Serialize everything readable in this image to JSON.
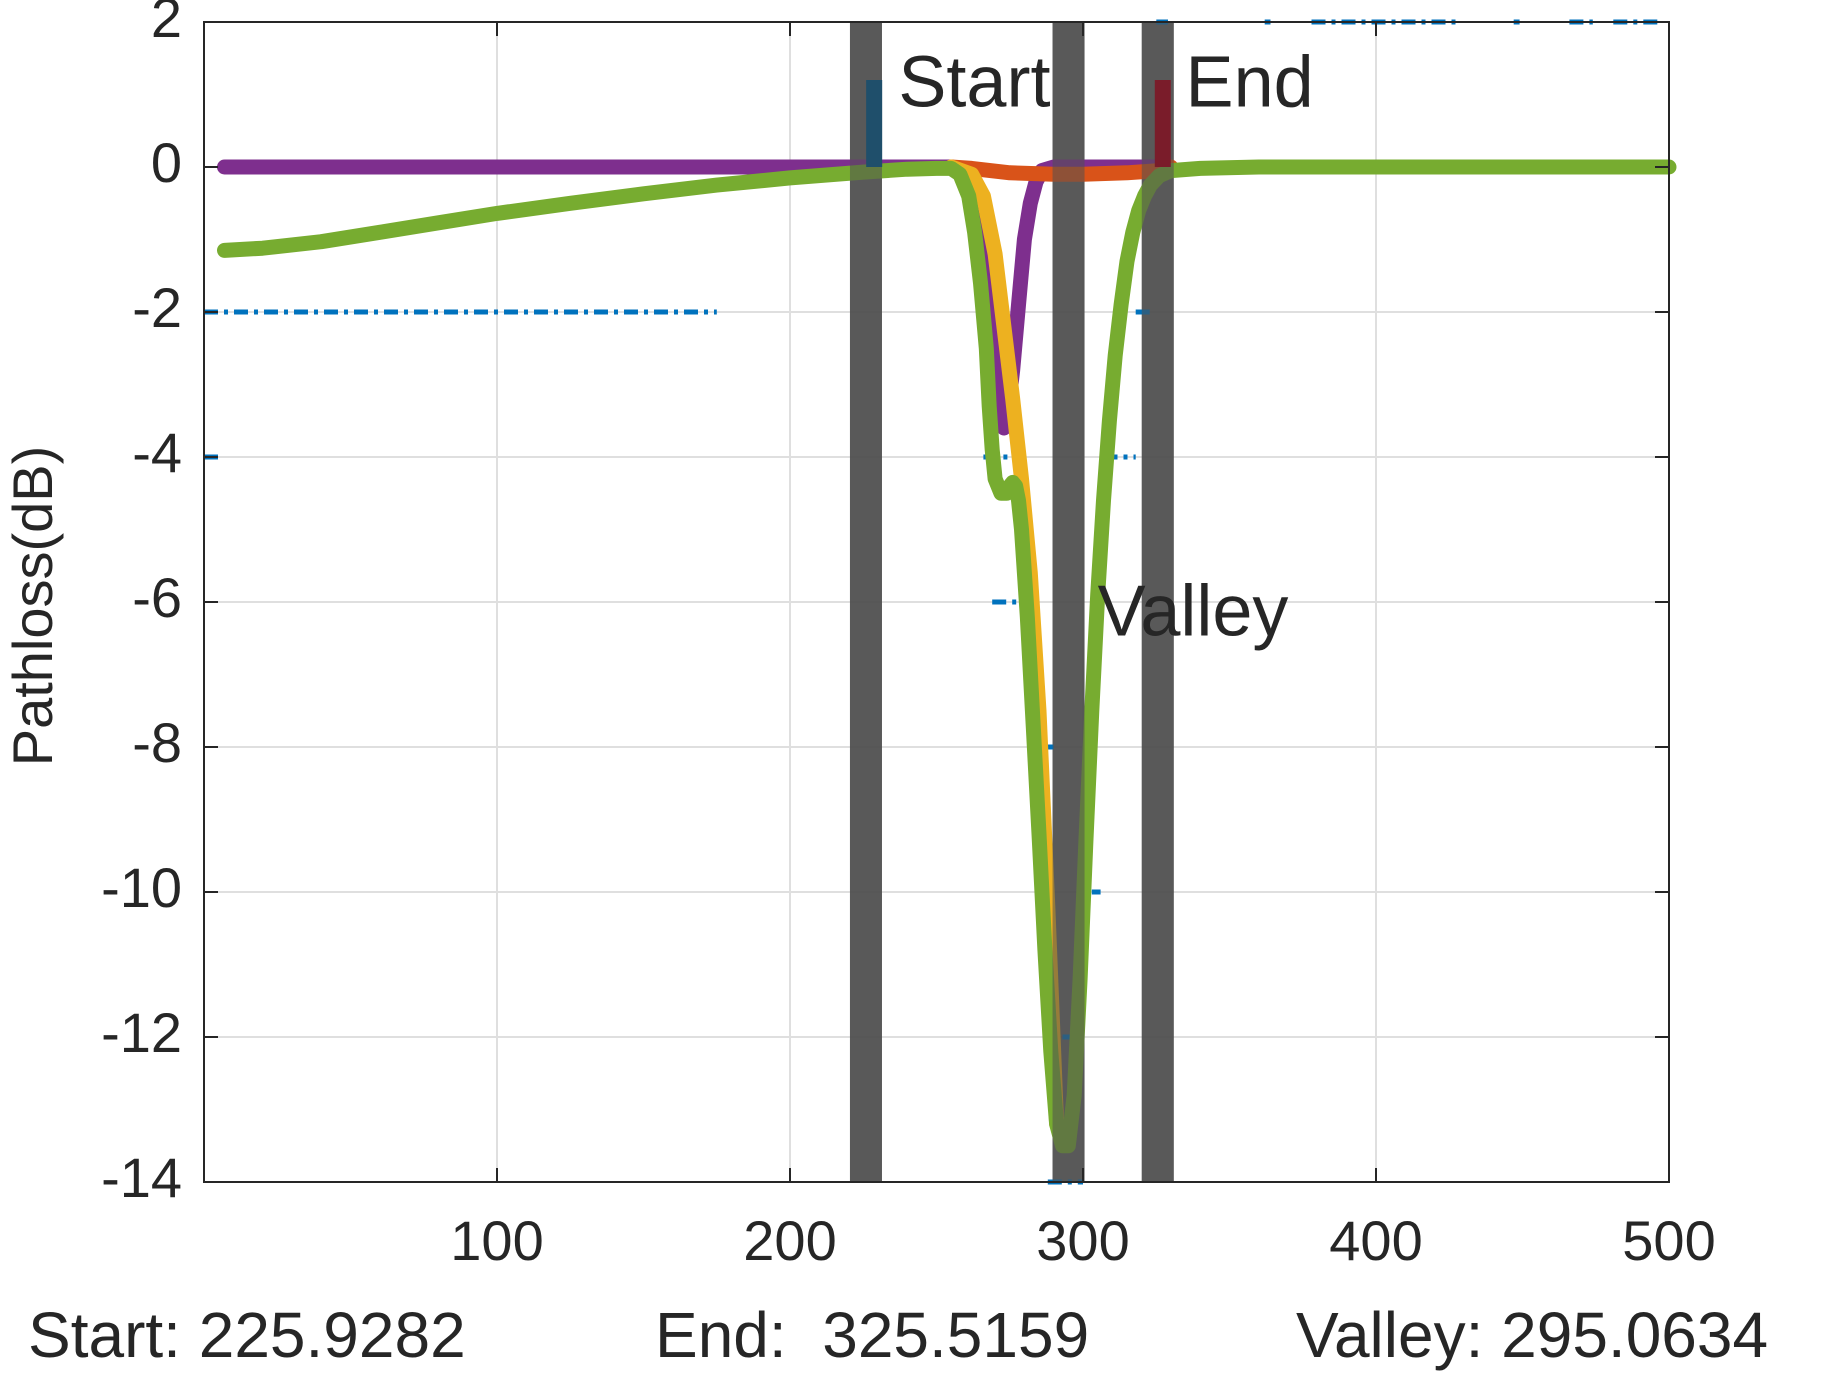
{
  "chart_data": {
    "type": "line",
    "title": "",
    "xlabel": "",
    "ylabel": "Pathloss(dB)",
    "xlim": [
      0,
      500
    ],
    "ylim": [
      -14,
      2
    ],
    "xticks": [
      100,
      200,
      300,
      400,
      500
    ],
    "xtick_labels": [
      "100",
      "200",
      "300",
      "400",
      "500"
    ],
    "yticks": [
      2,
      0,
      -2,
      -4,
      -6,
      -8,
      -10,
      -12,
      -14
    ],
    "ytick_labels": [
      "2",
      "0",
      "-2",
      "-4",
      "-6",
      "-8",
      "-10",
      "-12",
      "-14"
    ],
    "grid": true,
    "legend": "none",
    "colors": {
      "purple": "#7E2F8E",
      "orange": "#D95319",
      "yellow": "#EDB120",
      "green": "#77AC30",
      "blue": "#0072BD",
      "marker_bar": "#505050",
      "start_tick": "#1f4f6b",
      "end_tick": "#7a1c2a"
    },
    "series": [
      {
        "color": "#7E2F8E",
        "x": [
          7,
          100,
          200,
          255,
          262,
          266,
          269,
          271,
          272,
          273,
          274,
          276,
          278,
          280,
          282,
          284,
          286,
          290,
          300,
          315,
          326
        ],
        "y": [
          0,
          0,
          0,
          0,
          -0.1,
          -0.5,
          -1.5,
          -2.5,
          -3.2,
          -3.6,
          -3.5,
          -2.8,
          -1.9,
          -1.0,
          -0.5,
          -0.2,
          -0.05,
          0,
          0,
          0,
          0
        ]
      },
      {
        "color": "#D95319",
        "x": [
          255,
          262,
          275,
          290,
          300,
          315,
          326,
          330
        ],
        "y": [
          0,
          -0.02,
          -0.08,
          -0.1,
          -0.1,
          -0.08,
          -0.05,
          0
        ]
      },
      {
        "color": "#EDB120",
        "x": [
          255,
          262,
          266,
          270,
          273,
          276,
          279,
          282,
          285,
          288,
          291
        ],
        "y": [
          0,
          -0.1,
          -0.4,
          -1.2,
          -2.2,
          -3.2,
          -4.3,
          -5.6,
          -7.5,
          -10.2,
          -13.2
        ]
      },
      {
        "color": "#77AC30",
        "x": [
          7,
          20,
          40,
          60,
          80,
          100,
          125,
          150,
          175,
          200,
          225,
          240,
          250,
          255,
          258,
          261,
          263,
          265,
          267,
          268,
          269,
          270,
          272,
          274,
          275,
          276,
          277,
          278,
          279,
          281,
          283,
          285,
          287,
          289,
          291,
          293,
          295,
          297,
          299,
          301,
          303,
          305,
          307,
          309,
          311,
          313,
          315,
          317,
          319,
          321,
          323,
          326,
          330,
          340,
          360,
          400,
          450,
          500
        ],
        "y": [
          -1.15,
          -1.12,
          -1.03,
          -0.9,
          -0.77,
          -0.64,
          -0.5,
          -0.37,
          -0.25,
          -0.15,
          -0.07,
          -0.03,
          -0.02,
          -0.02,
          -0.1,
          -0.4,
          -0.9,
          -1.6,
          -2.5,
          -3.3,
          -3.9,
          -4.3,
          -4.5,
          -4.5,
          -4.4,
          -4.35,
          -4.4,
          -4.6,
          -5.0,
          -6.2,
          -7.7,
          -9.2,
          -10.8,
          -12.2,
          -13.2,
          -13.5,
          -13.5,
          -12.8,
          -11.2,
          -9.3,
          -7.5,
          -5.9,
          -4.6,
          -3.5,
          -2.6,
          -1.9,
          -1.3,
          -0.9,
          -0.6,
          -0.4,
          -0.25,
          -0.12,
          -0.05,
          -0.02,
          0,
          0,
          0,
          0
        ]
      },
      {
        "color": "#0072BD",
        "style": "dashdot",
        "x": [
          0,
          4,
          6,
          15,
          20,
          45,
          50,
          60,
          62,
          97,
          103,
          120,
          125,
          128,
          135,
          140,
          150,
          155,
          165,
          170,
          175
        ],
        "y": [
          -2,
          -2,
          -2,
          -2,
          -2,
          -2,
          -2,
          -2,
          -2,
          -2,
          -2,
          -2,
          -2,
          -2,
          -2,
          -2,
          -2,
          -2,
          -2,
          -2,
          -2
        ]
      }
    ],
    "blue_fragments": [
      {
        "x": [
          0,
          5
        ],
        "y": [
          -4,
          -4
        ]
      },
      {
        "x": [
          264,
          268
        ],
        "y": [
          -2,
          -2
        ]
      },
      {
        "x": [
          318,
          324
        ],
        "y": [
          -2,
          -2
        ]
      },
      {
        "x": [
          266,
          275
        ],
        "y": [
          -4,
          -4
        ]
      },
      {
        "x": [
          307,
          318
        ],
        "y": [
          -4,
          -4
        ]
      },
      {
        "x": [
          269,
          284
        ],
        "y": [
          -6,
          -6
        ]
      },
      {
        "x": [
          288,
          290
        ],
        "y": [
          -8,
          -8
        ]
      },
      {
        "x": [
          303,
          306
        ],
        "y": [
          -10,
          -10
        ]
      },
      {
        "x": [
          293,
          298
        ],
        "y": [
          -12,
          -12
        ]
      },
      {
        "x": [
          288,
          300
        ],
        "y": [
          -14,
          -14
        ]
      },
      {
        "x": [
          325,
          329
        ],
        "y": [
          2,
          2
        ]
      },
      {
        "x": [
          362,
          364
        ],
        "y": [
          2,
          2
        ]
      },
      {
        "x": [
          378,
          428
        ],
        "y": [
          2,
          2
        ]
      },
      {
        "x": [
          447,
          449
        ],
        "y": [
          2,
          2
        ]
      },
      {
        "x": [
          466,
          474
        ],
        "y": [
          2,
          2
        ]
      },
      {
        "x": [
          481,
          498
        ],
        "y": [
          2,
          2
        ]
      }
    ],
    "markers": [
      {
        "name": "start",
        "x": 225.9282
      },
      {
        "name": "valley",
        "x": 295.0634
      },
      {
        "name": "end",
        "x": 325.5159
      }
    ],
    "annotations": [
      {
        "text": "Start",
        "x": 237,
        "y": 1.1
      },
      {
        "text": "End",
        "x": 335,
        "y": 1.1
      },
      {
        "text": "Valley",
        "x": 305,
        "y": -6.2
      }
    ]
  },
  "readouts": {
    "start": "Start: 225.9282",
    "end": "End:  325.5159",
    "valley": "Valley: 295.0634"
  }
}
